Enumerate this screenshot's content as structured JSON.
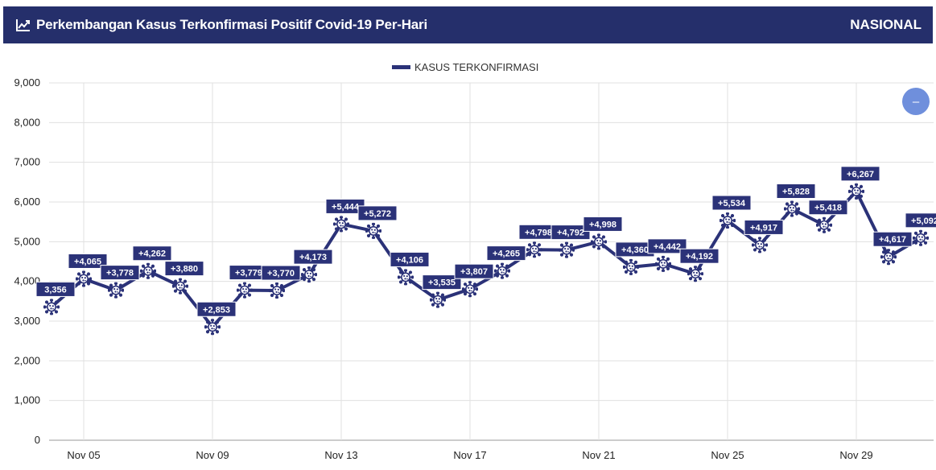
{
  "header": {
    "title": "Perkembangan Kasus Terkonfirmasi Positif Covid-19 Per-Hari",
    "scope": "NASIONAL",
    "icon": "line-chart-icon"
  },
  "colors": {
    "header_bg": "#252f6b",
    "series": "#2b3278",
    "grid": "#e0e0e0",
    "zoom_button": "#6f8fdc"
  },
  "zoom_button": {
    "label": "–",
    "icon": "minus-icon"
  },
  "chart_data": {
    "type": "line",
    "legend": {
      "position": "top-center",
      "entries": [
        "KASUS TERKONFIRMASI"
      ]
    },
    "x": [
      "Nov 04",
      "Nov 05",
      "Nov 06",
      "Nov 07",
      "Nov 08",
      "Nov 09",
      "Nov 10",
      "Nov 11",
      "Nov 12",
      "Nov 13",
      "Nov 14",
      "Nov 15",
      "Nov 16",
      "Nov 17",
      "Nov 18",
      "Nov 19",
      "Nov 20",
      "Nov 21",
      "Nov 22",
      "Nov 23",
      "Nov 24",
      "Nov 25",
      "Nov 26",
      "Nov 27",
      "Nov 28",
      "Nov 29",
      "Nov 30",
      "Dec 01"
    ],
    "x_ticks": [
      "Nov 05",
      "Nov 09",
      "Nov 13",
      "Nov 17",
      "Nov 21",
      "Nov 25",
      "Nov 29"
    ],
    "series": [
      {
        "name": "KASUS TERKONFIRMASI",
        "values": [
          3356,
          4065,
          3778,
          4262,
          3880,
          2853,
          3779,
          3770,
          4173,
          5444,
          5272,
          4106,
          3535,
          3807,
          4265,
          4798,
          4792,
          4998,
          4360,
          4442,
          4192,
          5534,
          4917,
          5828,
          5418,
          6267,
          4617,
          5092
        ],
        "labels": [
          "3,356",
          "+4,065",
          "+3,778",
          "+4,262",
          "+3,880",
          "+2,853",
          "+3,779",
          "+3,770",
          "+4,173",
          "+5,444",
          "+5,272",
          "+4,106",
          "+3,535",
          "+3,807",
          "+4,265",
          "+4,798",
          "+4,792",
          "+4,998",
          "+4,360",
          "+4,442",
          "+4,192",
          "+5,534",
          "+4,917",
          "+5,828",
          "+5,418",
          "+6,267",
          "+4,617",
          "+5,092"
        ]
      }
    ],
    "ylim": [
      0,
      9000
    ],
    "y_ticks": [
      "0",
      "1,000",
      "2,000",
      "3,000",
      "4,000",
      "5,000",
      "6,000",
      "7,000",
      "8,000",
      "9,000"
    ],
    "grid": true,
    "marker": "virus-icon"
  }
}
